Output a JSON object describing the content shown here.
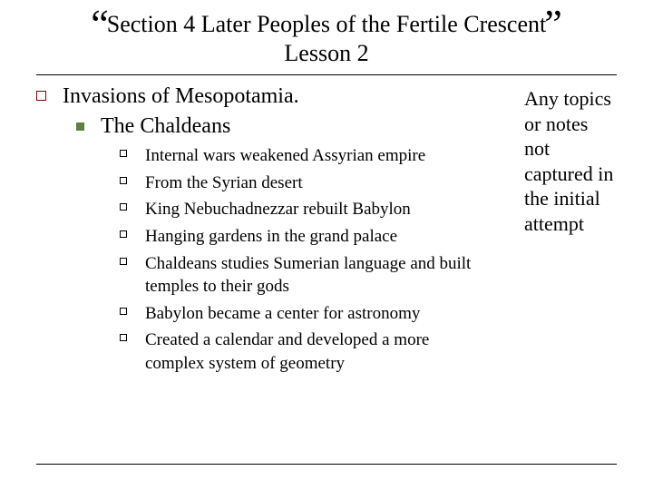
{
  "title": {
    "quote_left": "“",
    "quote_right": "”",
    "line1": "Section 4 Later Peoples of the Fertile Crescent",
    "line2": "Lesson 2"
  },
  "outline": {
    "lvl1_text": "Invasions of Mesopotamia.",
    "lvl2_text": "The Chaldeans",
    "lvl3_items": [
      "Internal wars weakened Assyrian empire",
      "From the Syrian desert",
      "King Nebuchadnezzar rebuilt Babylon",
      "Hanging gardens in the grand palace",
      "Chaldeans studies Sumerian language and built temples to their gods",
      "Babylon became a center for astronomy",
      "Created a calendar and developed a more complex system of geometry"
    ]
  },
  "sidebar_text": "Any topics or notes not captured in the initial attempt",
  "colors": {
    "lvl1_bullet_border": "#800000",
    "lvl2_bullet_fill": "#5f7f3f",
    "lvl3_bullet_border": "#000000",
    "rule": "#000000",
    "background": "#ffffff",
    "text": "#000000"
  }
}
